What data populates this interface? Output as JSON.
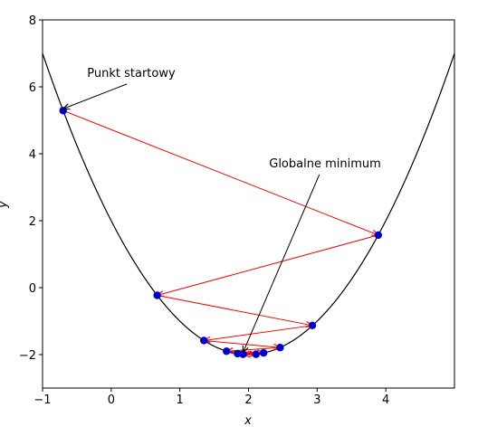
{
  "chart_data": {
    "type": "line",
    "xlabel": "x",
    "ylabel": "y",
    "xlim": [
      -1,
      5
    ],
    "ylim": [
      -3,
      8
    ],
    "x_ticks": [
      -1,
      0,
      1,
      2,
      3,
      4
    ],
    "y_ticks": [
      -2,
      0,
      2,
      4,
      6,
      8
    ],
    "x_tick_labels": [
      "−1",
      "0",
      "1",
      "2",
      "3",
      "4"
    ],
    "y_tick_labels": [
      "−2",
      "0",
      "2",
      "4",
      "6",
      "8"
    ],
    "curve": {
      "expression": "(x - 2)^2 - 2",
      "x_range": [
        -1,
        5
      ],
      "color": "#000000"
    },
    "path_points": [
      {
        "x": -0.7,
        "y": 5.29
      },
      {
        "x": 3.89,
        "y": 1.57
      },
      {
        "x": 0.67,
        "y": -0.23
      },
      {
        "x": 2.93,
        "y": -1.13
      },
      {
        "x": 1.35,
        "y": -1.58
      },
      {
        "x": 2.46,
        "y": -1.79
      },
      {
        "x": 1.68,
        "y": -1.9
      },
      {
        "x": 2.22,
        "y": -1.95
      },
      {
        "x": 1.84,
        "y": -1.97
      },
      {
        "x": 2.11,
        "y": -1.99
      },
      {
        "x": 1.92,
        "y": -1.99
      }
    ],
    "point_color": "#0000cc",
    "arrow_color": "#ff0000",
    "annotations": [
      {
        "text": "Punkt startowy",
        "point": {
          "x": -0.7,
          "y": 5.29
        },
        "text_pos": {
          "x": -0.35,
          "y": 6.3
        }
      },
      {
        "text": "Globalne minimum",
        "point": {
          "x": 1.92,
          "y": -1.99
        },
        "text_pos": {
          "x": 2.3,
          "y": 3.6
        }
      }
    ]
  }
}
